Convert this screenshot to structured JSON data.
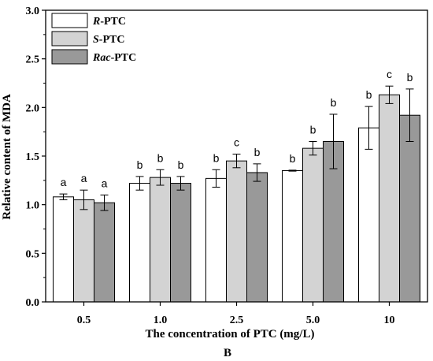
{
  "chart_data": {
    "type": "bar",
    "categories": [
      "0.5",
      "1.0",
      "2.5",
      "5.0",
      "10"
    ],
    "xlabel": "The concentration of PTC (mg/L)",
    "ylabel": "Relative content of MDA",
    "panel_label": "B",
    "ylim": [
      0.0,
      3.0
    ],
    "yticks": [
      "0.0",
      "0.5",
      "1.0",
      "1.5",
      "2.0",
      "2.5",
      "3.0"
    ],
    "grid": false,
    "legend_position": "top-left",
    "series": [
      {
        "name": "R-PTC",
        "legend_italic": "R",
        "legend_rest": "-PTC",
        "color": "#ffffff",
        "values": [
          1.08,
          1.22,
          1.27,
          1.35,
          1.79
        ],
        "errors": [
          0.03,
          0.07,
          0.09,
          0.005,
          0.22
        ],
        "significance": [
          "a",
          "b",
          "b",
          "b",
          "b"
        ]
      },
      {
        "name": "S-PTC",
        "legend_italic": "S",
        "legend_rest": "-PTC",
        "color": "#d3d3d3",
        "values": [
          1.05,
          1.28,
          1.45,
          1.58,
          2.13
        ],
        "errors": [
          0.1,
          0.08,
          0.07,
          0.07,
          0.09
        ],
        "significance": [
          "a",
          "b",
          "c",
          "b",
          "c"
        ]
      },
      {
        "name": "Rac-PTC",
        "legend_italic": "Rac",
        "legend_rest": "-PTC",
        "color": "#999999",
        "values": [
          1.02,
          1.22,
          1.33,
          1.65,
          1.92
        ],
        "errors": [
          0.08,
          0.07,
          0.09,
          0.28,
          0.27
        ],
        "significance": [
          "a",
          "b",
          "b",
          "b",
          "b"
        ]
      }
    ]
  }
}
